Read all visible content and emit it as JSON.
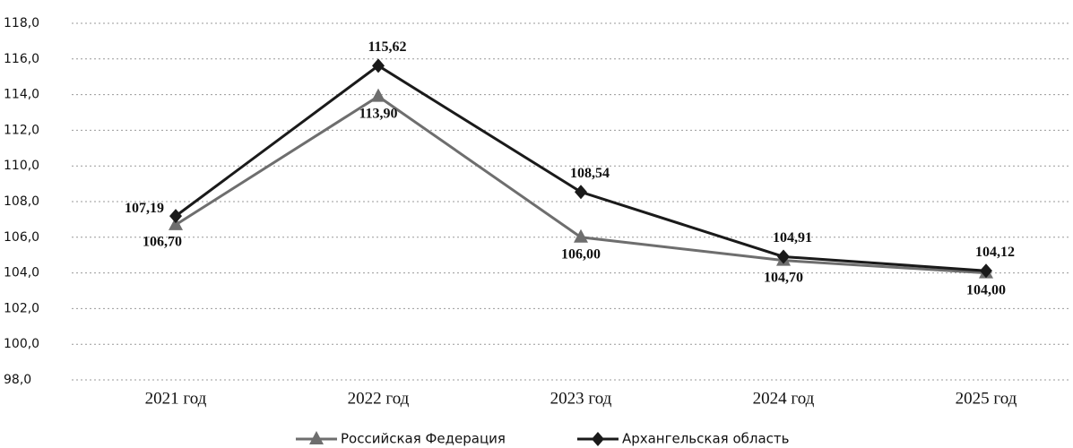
{
  "chart_data": {
    "type": "line",
    "categories": [
      "2021 год",
      "2022 год",
      "2023 год",
      "2024 год",
      "2025 год"
    ],
    "series": [
      {
        "name": "Российская Федерация",
        "color": "#6e6e6e",
        "marker": "triangle",
        "values": [
          106.7,
          113.9,
          106.0,
          104.7,
          104.0
        ],
        "value_labels": [
          "106,70",
          "113,90",
          "106,00",
          "104,70",
          "104,00"
        ]
      },
      {
        "name": "Архангельская область",
        "color": "#1a1a1a",
        "marker": "diamond",
        "values": [
          107.19,
          115.62,
          108.54,
          104.91,
          104.12
        ],
        "value_labels": [
          "107,19",
          "115,62",
          "108,54",
          "104,91",
          "104,12"
        ]
      }
    ],
    "ylim": [
      98,
      118
    ],
    "yticks": [
      {
        "value": 98,
        "label": "98,0"
      },
      {
        "value": 100,
        "label": "100,0"
      },
      {
        "value": 102,
        "label": "102,0"
      },
      {
        "value": 104,
        "label": "104,0"
      },
      {
        "value": 106,
        "label": "106,0"
      },
      {
        "value": 108,
        "label": "108,0"
      },
      {
        "value": 110,
        "label": "110,0"
      },
      {
        "value": 112,
        "label": "112,0"
      },
      {
        "value": 114,
        "label": "114,0"
      },
      {
        "value": 116,
        "label": "116,0"
      },
      {
        "value": 118,
        "label": "118,0"
      }
    ],
    "grid": true,
    "legend": "bottom"
  }
}
